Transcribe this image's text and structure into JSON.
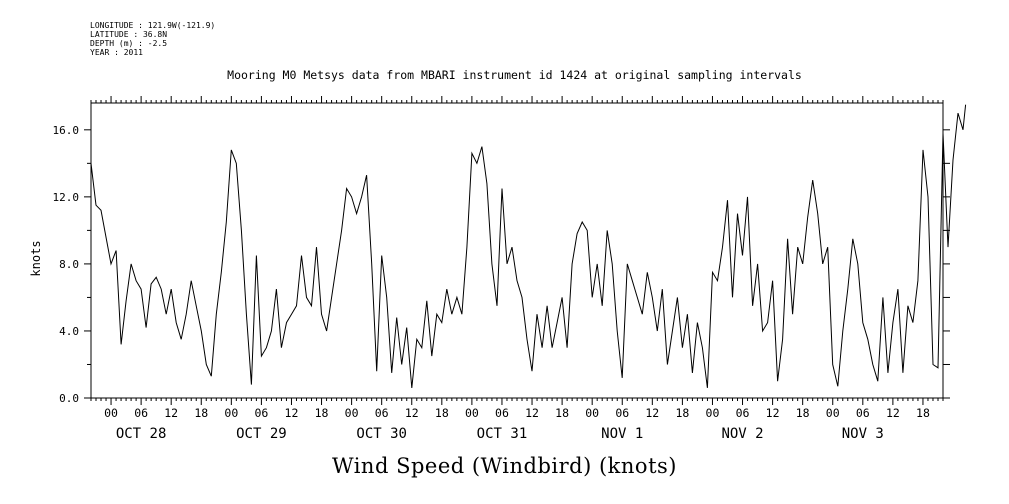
{
  "metadata": [
    "LONGITUDE : 121.9W(-121.9)",
    "LATITUDE : 36.8N",
    "DEPTH (m) : -2.5",
    "YEAR : 2011"
  ],
  "chart_data": {
    "type": "line",
    "title": "Mooring M0 Metsys data from MBARI instrument id 1424 at original sampling intervals",
    "xlabel": "Wind Speed (Windbird) (knots)",
    "ylabel": "knots",
    "ylim": [
      0,
      17.6
    ],
    "xlim_hours": [
      -4,
      166
    ],
    "y_ticks": [
      "0.0",
      "4.0",
      "8.0",
      "12.0",
      "16.0"
    ],
    "x_hour_labels": [
      "00",
      "06",
      "12",
      "18"
    ],
    "day_labels": [
      "OCT 28",
      "OCT 29",
      "OCT 30",
      "OCT 31",
      "NOV 1",
      "NOV 2",
      "NOV 3"
    ],
    "grid": false,
    "series": [
      {
        "values": [
          [
            -4,
            14.0
          ],
          [
            -3,
            11.5
          ],
          [
            -2,
            11.2
          ],
          [
            -1,
            9.6
          ],
          [
            0,
            8.0
          ],
          [
            1,
            8.8
          ],
          [
            2,
            3.2
          ],
          [
            3,
            5.8
          ],
          [
            4,
            8.0
          ],
          [
            5,
            7.0
          ],
          [
            6,
            6.5
          ],
          [
            7,
            4.2
          ],
          [
            8,
            6.8
          ],
          [
            9,
            7.2
          ],
          [
            10,
            6.5
          ],
          [
            11,
            5.0
          ],
          [
            12,
            6.5
          ],
          [
            13,
            4.5
          ],
          [
            14,
            3.5
          ],
          [
            15,
            5.0
          ],
          [
            16,
            7.0
          ],
          [
            17,
            5.5
          ],
          [
            18,
            4.0
          ],
          [
            19,
            2.0
          ],
          [
            20,
            1.3
          ],
          [
            21,
            5.0
          ],
          [
            22,
            7.5
          ],
          [
            23,
            10.5
          ],
          [
            24,
            14.8
          ],
          [
            25,
            14.0
          ],
          [
            26,
            10.0
          ],
          [
            27,
            5.0
          ],
          [
            28,
            0.8
          ],
          [
            29,
            8.5
          ],
          [
            30,
            2.5
          ],
          [
            31,
            3.0
          ],
          [
            32,
            4.0
          ],
          [
            33,
            6.5
          ],
          [
            34,
            3.0
          ],
          [
            35,
            4.5
          ],
          [
            36,
            5.0
          ],
          [
            37,
            5.5
          ],
          [
            38,
            8.5
          ],
          [
            39,
            6.0
          ],
          [
            40,
            5.5
          ],
          [
            41,
            9.0
          ],
          [
            42,
            5.0
          ],
          [
            43,
            4.0
          ],
          [
            44,
            6.0
          ],
          [
            45,
            8.0
          ],
          [
            46,
            10.0
          ],
          [
            47,
            12.5
          ],
          [
            48,
            12.0
          ],
          [
            49,
            11.0
          ],
          [
            50,
            12.0
          ],
          [
            51,
            13.3
          ],
          [
            52,
            8.0
          ],
          [
            53,
            1.6
          ],
          [
            54,
            8.5
          ],
          [
            55,
            6.0
          ],
          [
            56,
            1.5
          ],
          [
            57,
            4.8
          ],
          [
            58,
            2.0
          ],
          [
            59,
            4.2
          ],
          [
            60,
            0.6
          ],
          [
            61,
            3.5
          ],
          [
            62,
            3.0
          ],
          [
            63,
            5.8
          ],
          [
            64,
            2.5
          ],
          [
            65,
            5.0
          ],
          [
            66,
            4.5
          ],
          [
            67,
            6.5
          ],
          [
            68,
            5.0
          ],
          [
            69,
            6.0
          ],
          [
            70,
            5.0
          ],
          [
            71,
            9.0
          ],
          [
            72,
            14.6
          ],
          [
            73,
            14.0
          ],
          [
            74,
            15.0
          ],
          [
            75,
            12.8
          ],
          [
            76,
            8.0
          ],
          [
            77,
            5.5
          ],
          [
            78,
            12.5
          ],
          [
            79,
            8.0
          ],
          [
            80,
            9.0
          ],
          [
            81,
            7.0
          ],
          [
            82,
            6.0
          ],
          [
            83,
            3.5
          ],
          [
            84,
            1.6
          ],
          [
            85,
            5.0
          ],
          [
            86,
            3.0
          ],
          [
            87,
            5.5
          ],
          [
            88,
            3.0
          ],
          [
            89,
            4.5
          ],
          [
            90,
            6.0
          ],
          [
            91,
            3.0
          ],
          [
            92,
            8.0
          ],
          [
            93,
            9.8
          ],
          [
            94,
            10.5
          ],
          [
            95,
            10.0
          ],
          [
            96,
            6.0
          ],
          [
            97,
            8.0
          ],
          [
            98,
            5.5
          ],
          [
            99,
            10.0
          ],
          [
            100,
            8.0
          ],
          [
            101,
            4.0
          ],
          [
            102,
            1.2
          ],
          [
            103,
            8.0
          ],
          [
            104,
            7.0
          ],
          [
            105,
            6.0
          ],
          [
            106,
            5.0
          ],
          [
            107,
            7.5
          ],
          [
            108,
            6.0
          ],
          [
            109,
            4.0
          ],
          [
            110,
            6.5
          ],
          [
            111,
            2.0
          ],
          [
            112,
            4.0
          ],
          [
            113,
            6.0
          ],
          [
            114,
            3.0
          ],
          [
            115,
            5.0
          ],
          [
            116,
            1.5
          ],
          [
            117,
            4.5
          ],
          [
            118,
            3.0
          ],
          [
            119,
            0.6
          ],
          [
            120,
            7.5
          ],
          [
            121,
            7.0
          ],
          [
            122,
            9.0
          ],
          [
            123,
            11.8
          ],
          [
            124,
            6.0
          ],
          [
            125,
            11.0
          ],
          [
            126,
            8.5
          ],
          [
            127,
            12.0
          ],
          [
            128,
            5.5
          ],
          [
            129,
            8.0
          ],
          [
            130,
            4.0
          ],
          [
            131,
            4.5
          ],
          [
            132,
            7.0
          ],
          [
            133,
            1.0
          ],
          [
            134,
            3.5
          ],
          [
            135,
            9.5
          ],
          [
            136,
            5.0
          ],
          [
            137,
            9.0
          ],
          [
            138,
            8.0
          ],
          [
            139,
            10.8
          ],
          [
            140,
            13.0
          ],
          [
            141,
            11.0
          ],
          [
            142,
            8.0
          ],
          [
            143,
            9.0
          ],
          [
            144,
            2.0
          ],
          [
            145,
            0.7
          ],
          [
            146,
            4.0
          ],
          [
            147,
            6.5
          ],
          [
            148,
            9.5
          ],
          [
            149,
            8.0
          ],
          [
            150,
            4.5
          ],
          [
            151,
            3.5
          ],
          [
            152,
            2.0
          ],
          [
            153,
            1.0
          ],
          [
            154,
            6.0
          ],
          [
            155,
            1.5
          ],
          [
            156,
            4.5
          ],
          [
            157,
            6.5
          ],
          [
            158,
            1.5
          ],
          [
            159,
            5.5
          ],
          [
            160,
            4.5
          ],
          [
            161,
            7.0
          ],
          [
            162,
            14.8
          ],
          [
            163,
            12.0
          ],
          [
            164,
            2.0
          ],
          [
            165,
            1.8
          ],
          [
            166,
            15.8
          ],
          [
            167,
            9.0
          ],
          [
            168,
            14.2
          ],
          [
            169,
            17.0
          ],
          [
            170,
            16.0
          ],
          [
            170.5,
            17.5
          ]
        ]
      }
    ]
  }
}
